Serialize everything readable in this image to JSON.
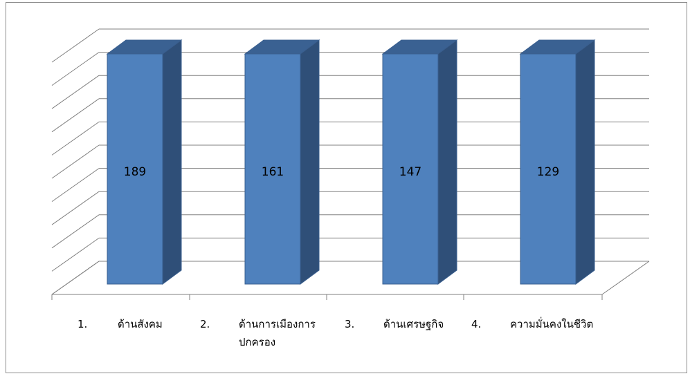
{
  "chart_data": {
    "type": "bar",
    "style": "3d-column",
    "categories": [
      "ด้านสังคม",
      "ด้านการเมืองการปกครอง",
      "ด้านเศรษฐกิจ",
      "ความมั่นคงในชีวิต"
    ],
    "category_numbers": [
      "1.",
      "2.",
      "3.",
      "4."
    ],
    "category_lines": [
      [
        "ด้านสังคม"
      ],
      [
        "ด้านการเมืองการ",
        "ปกครอง"
      ],
      [
        "ด้านเศรษฐกิจ"
      ],
      [
        "ความมั่นคงในชีวิต"
      ]
    ],
    "values": [
      189,
      161,
      147,
      129
    ],
    "data_labels": [
      "189",
      "161",
      "147",
      "129"
    ],
    "ylim": [
      0,
      100
    ],
    "grid": true,
    "legend": "none",
    "colors": {
      "front": "#4f81bd",
      "side": "#2f4f78",
      "top": "#3a6192",
      "grid": "#808080",
      "edge": "#3a5f8f"
    }
  }
}
